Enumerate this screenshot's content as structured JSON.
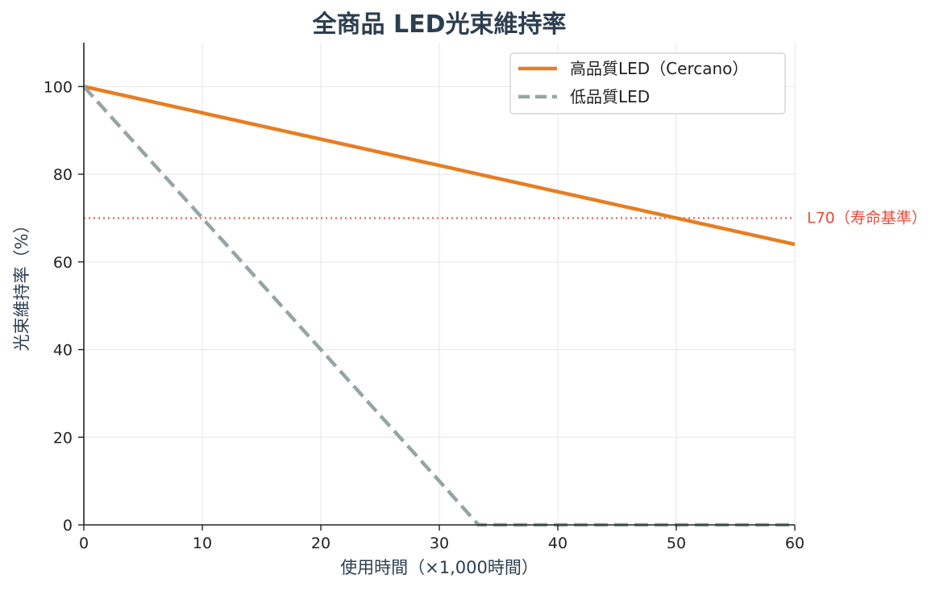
{
  "chart_data": {
    "type": "line",
    "title": "全商品 LED光束維持率",
    "xlabel": "使用時間（×1,000時間）",
    "ylabel": "光束維持率（%）",
    "xlim": [
      0,
      60
    ],
    "ylim": [
      0,
      110
    ],
    "xticks": [
      0,
      10,
      20,
      30,
      40,
      50,
      60
    ],
    "yticks": [
      0,
      20,
      40,
      60,
      80,
      100
    ],
    "grid": true,
    "legend_position": "top-right",
    "series": [
      {
        "name": "高品質LED（Cercano）",
        "color": "#e67e22",
        "style": "solid",
        "x": [
          0,
          10,
          20,
          30,
          40,
          50,
          60
        ],
        "y": [
          100,
          94,
          88,
          82,
          76,
          70,
          64
        ]
      },
      {
        "name": "低品質LED",
        "color": "#95a5a6",
        "style": "dashed",
        "x": [
          0,
          10,
          20,
          30,
          33.3,
          40,
          50,
          60
        ],
        "y": [
          100,
          70,
          40,
          10,
          0,
          0,
          0,
          0
        ]
      }
    ],
    "reference_line": {
      "y": 70,
      "label": "L70（寿命基準）",
      "color": "#e74c3c",
      "style": "dotted"
    }
  }
}
